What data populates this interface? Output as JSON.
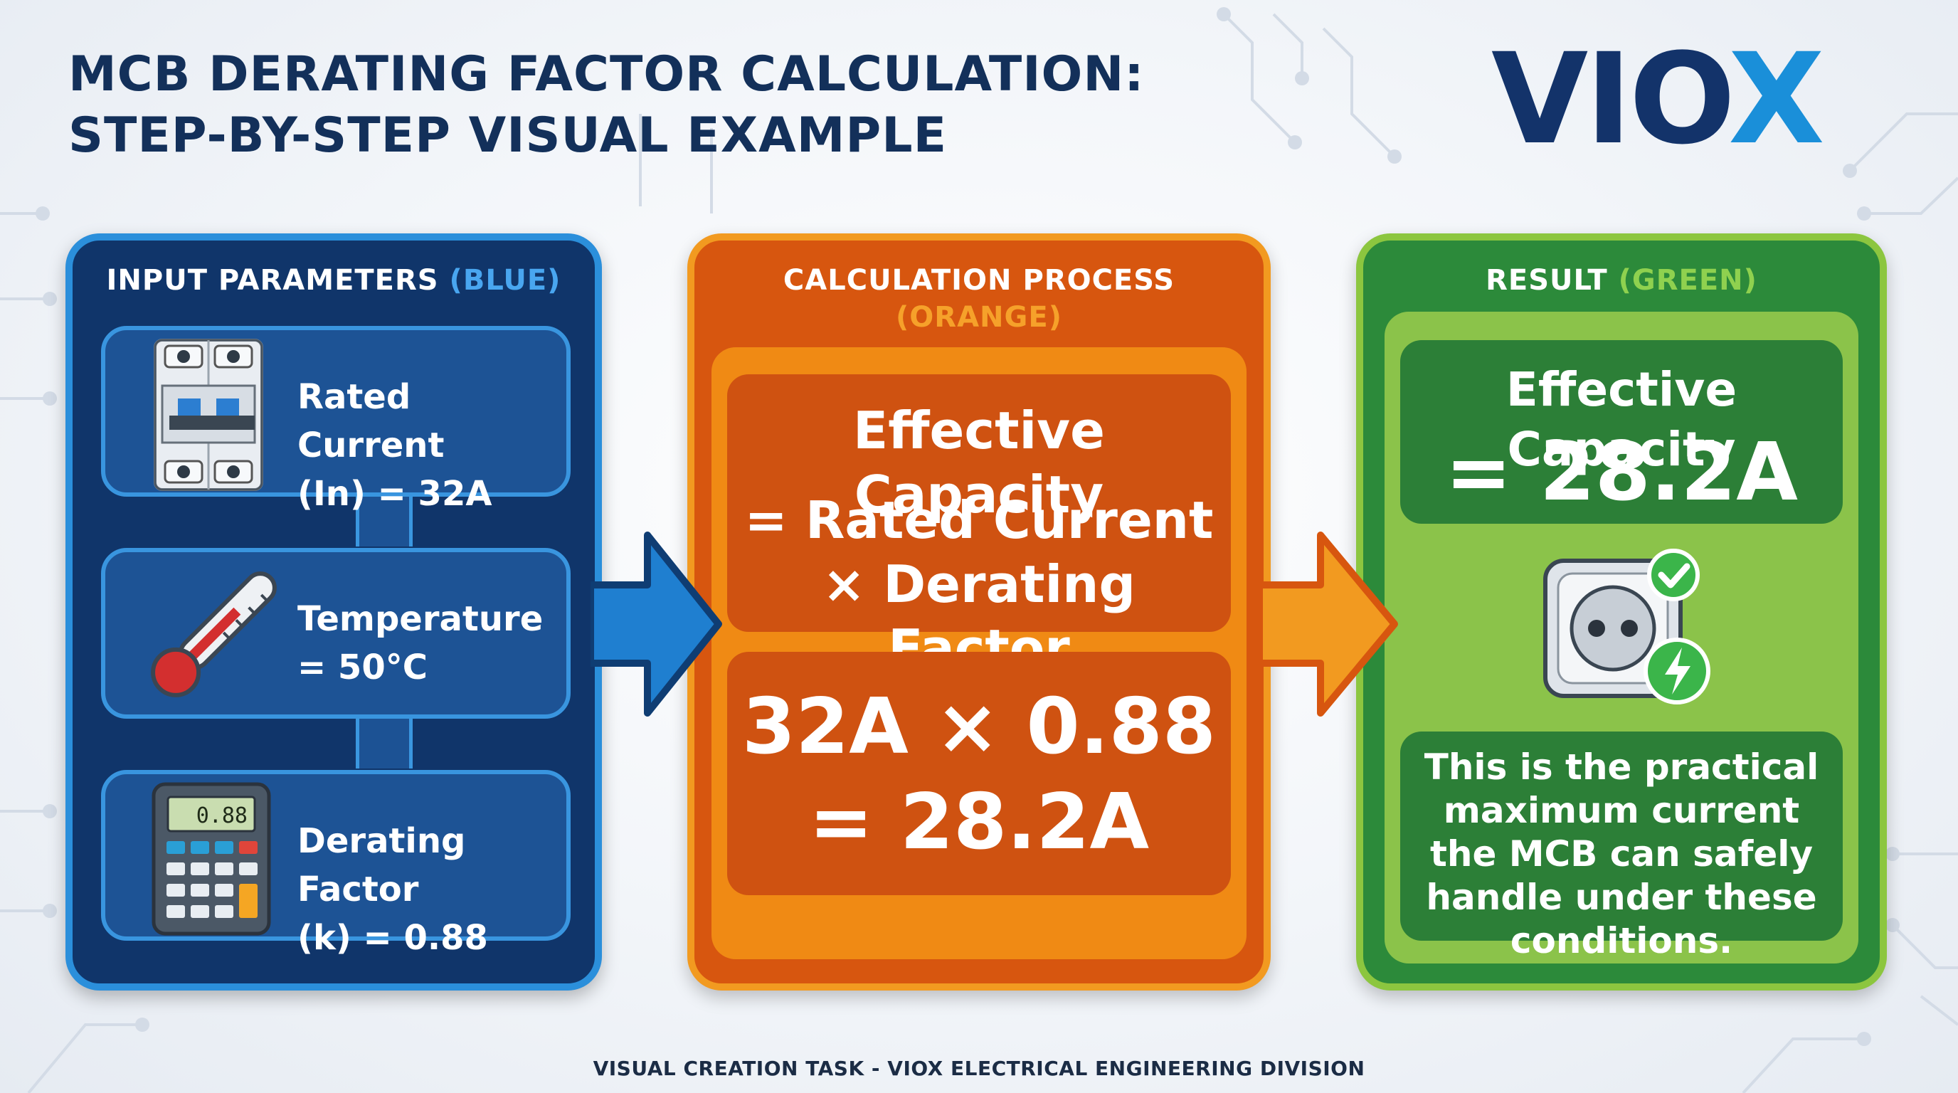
{
  "title": {
    "line1": "MCB DERATING FACTOR CALCULATION:",
    "line2": "STEP-BY-STEP VISUAL EXAMPLE"
  },
  "logo": {
    "text_main": "VIO",
    "text_x": "X"
  },
  "colors": {
    "navy": "#10356a",
    "blue_accent": "#2b8fdb",
    "orange": "#d7560f",
    "orange_accent": "#f29a20",
    "green": "#2c8a3a",
    "green_accent": "#8cc63f"
  },
  "input_panel": {
    "title": "INPUT PARAMETERS",
    "title_color": "(BLUE)",
    "items": [
      {
        "icon": "circuit-breaker-icon",
        "line1": "Rated Current",
        "line2": "(In) = 32A"
      },
      {
        "icon": "thermometer-icon",
        "line1": "Temperature",
        "line2": "= 50°C"
      },
      {
        "icon": "calculator-icon",
        "line1": "Derating Factor",
        "line2": "(k) = 0.88",
        "display": "0.88"
      }
    ]
  },
  "calc_panel": {
    "title": "CALCULATION PROCESS",
    "title_color": "(ORANGE)",
    "formula": {
      "line1": "Effective Capacity",
      "line2": "= Rated Current",
      "line3": "× Derating Factor"
    },
    "calc": {
      "line1": "32A × 0.88",
      "line2": "= 28.2A"
    }
  },
  "result_panel": {
    "title": "RESULT",
    "title_color": "(GREEN)",
    "result": {
      "line1": "Effective Capacity",
      "line2": "= 28.2A"
    },
    "icon": "power-socket-icon",
    "note": "This is the practical maximum current the MCB can safely handle under these conditions."
  },
  "footer": "VISUAL CREATION TASK - VIOX ELECTRICAL ENGINEERING DIVISION"
}
